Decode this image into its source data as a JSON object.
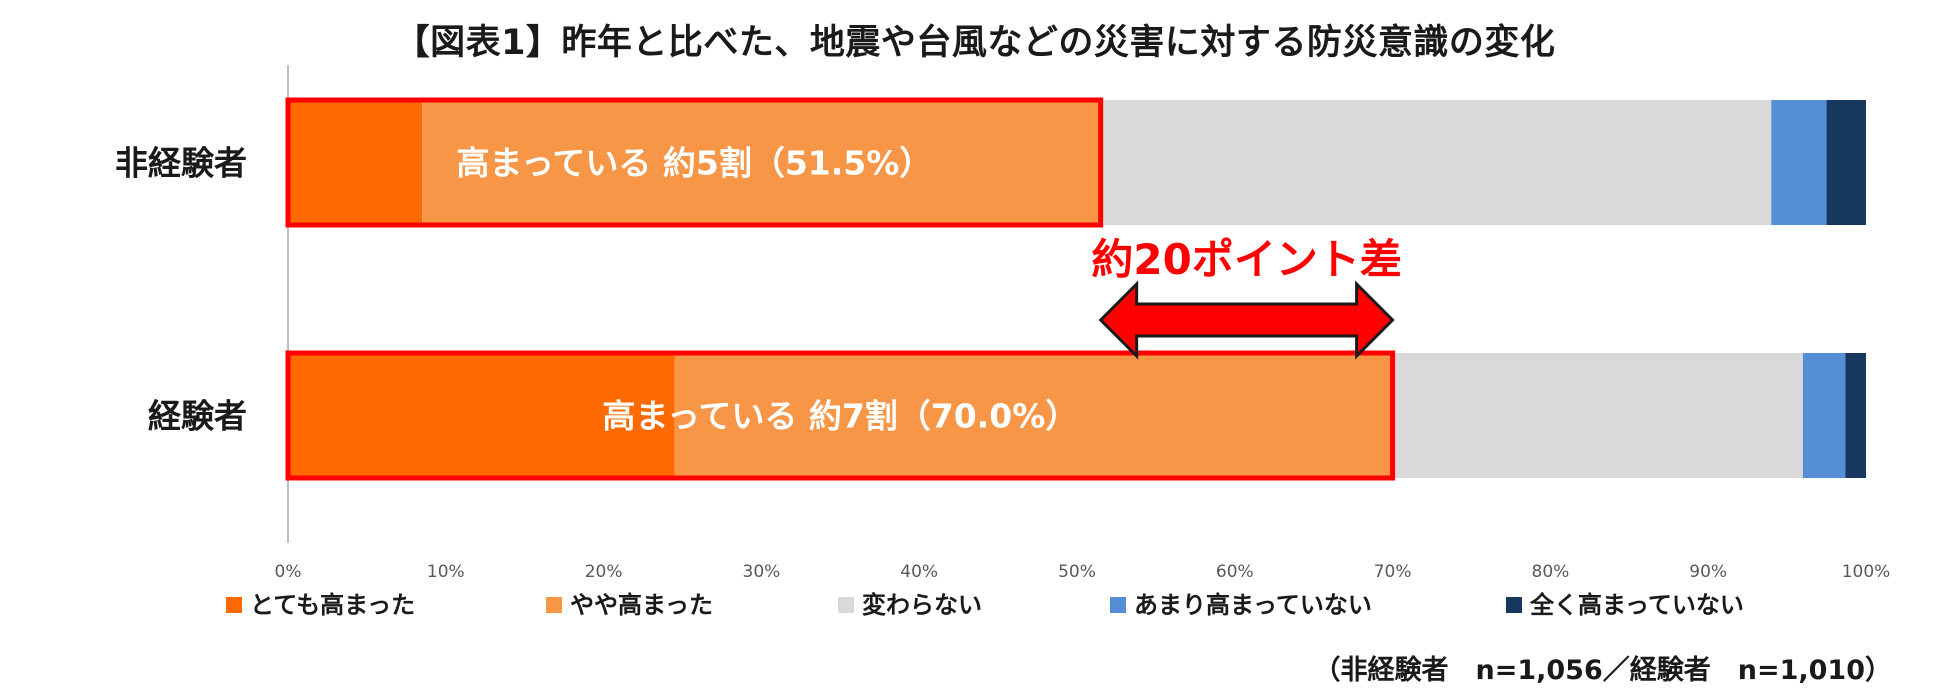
{
  "chart_data": {
    "type": "bar",
    "orientation": "horizontal",
    "stacked": true,
    "title": "【図表1】昨年と比べた、地震や台風などの災害に対する防災意識の変化",
    "categories": [
      "非経験者",
      "経験者"
    ],
    "series": [
      {
        "name": "とても高まった",
        "color": "#ff6a00",
        "values": [
          8.5,
          24.5
        ]
      },
      {
        "name": "やや高まった",
        "color": "#f79646",
        "values": [
          43.0,
          45.5
        ]
      },
      {
        "name": "変わらない",
        "color": "#d9d9d9",
        "values": [
          42.5,
          26.0
        ]
      },
      {
        "name": "あまり高まっていない",
        "color": "#558ed5",
        "values": [
          3.5,
          2.7
        ]
      },
      {
        "name": "全く高まっていない",
        "color": "#17375e",
        "values": [
          2.5,
          1.3
        ]
      }
    ],
    "x_ticks": [
      "0%",
      "10%",
      "20%",
      "30%",
      "40%",
      "50%",
      "60%",
      "70%",
      "80%",
      "90%",
      "100%"
    ],
    "xlim": [
      0,
      100
    ],
    "legend_position": "bottom",
    "grid": false,
    "highlights": [
      {
        "label": "高まっている 約5割（51.5%）",
        "value": 51.5
      },
      {
        "label": "高まっている 約7割（70.0%）",
        "value": 70.0
      }
    ],
    "difference_annotation": "約20ポイント差",
    "highlight_color": "#ff0000"
  },
  "note": "（非経験者　n=1,056／経験者　n=1,010）"
}
